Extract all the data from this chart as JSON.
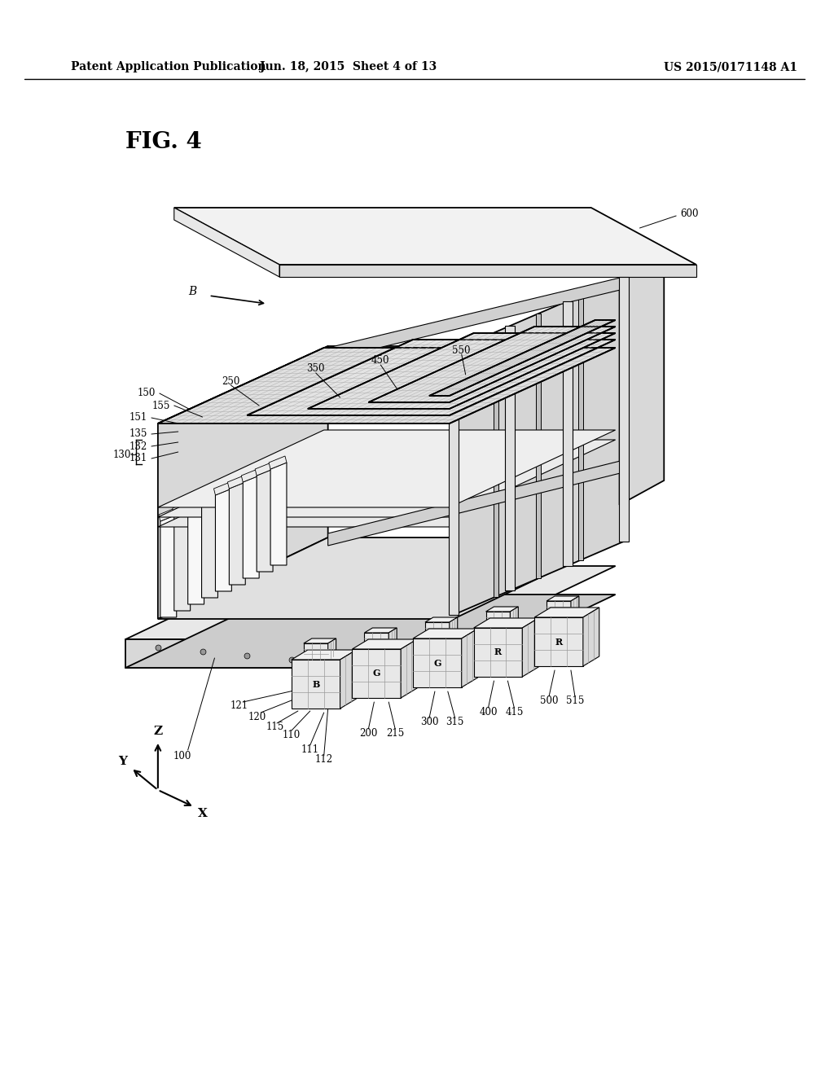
{
  "header_left": "Patent Application Publication",
  "header_mid": "Jun. 18, 2015  Sheet 4 of 13",
  "header_right": "US 2015/0171148 A1",
  "fig_label": "FIG. 4",
  "bg_color": "#ffffff"
}
